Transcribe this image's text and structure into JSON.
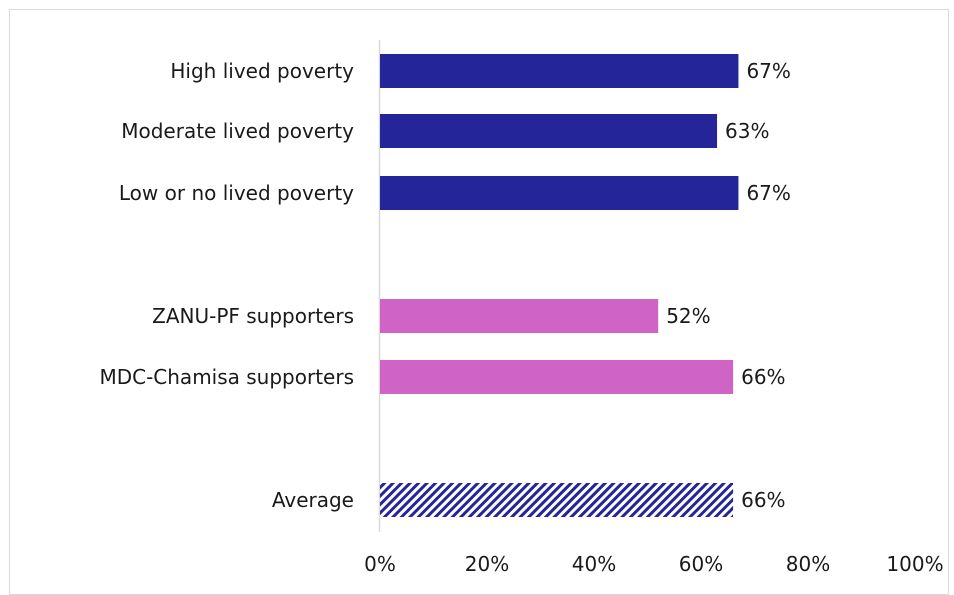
{
  "chart_data": {
    "type": "bar",
    "orientation": "horizontal",
    "title": "",
    "xlabel": "",
    "ylabel": "",
    "xlim": [
      0,
      100
    ],
    "x_ticks": [
      "0%",
      "20%",
      "40%",
      "60%",
      "80%",
      "100%"
    ],
    "grid": false,
    "legend": "none",
    "bars": [
      {
        "category": "High lived poverty",
        "value": 67,
        "label": "67%",
        "group": "poverty",
        "color": "#25259a"
      },
      {
        "category": "Moderate lived poverty",
        "value": 63,
        "label": "63%",
        "group": "poverty",
        "color": "#25259a"
      },
      {
        "category": "Low or no lived poverty",
        "value": 67,
        "label": "67%",
        "group": "poverty",
        "color": "#25259a"
      },
      {
        "category": "ZANU-PF supporters",
        "value": 52,
        "label": "52%",
        "group": "party",
        "color": "#d063c6"
      },
      {
        "category": "MDC-Chamisa supporters",
        "value": 66,
        "label": "66%",
        "group": "party",
        "color": "#d063c6"
      },
      {
        "category": "Average",
        "value": 66,
        "label": "66%",
        "group": "average",
        "color": "#25259a",
        "pattern": "diagonal-hatch"
      }
    ]
  }
}
